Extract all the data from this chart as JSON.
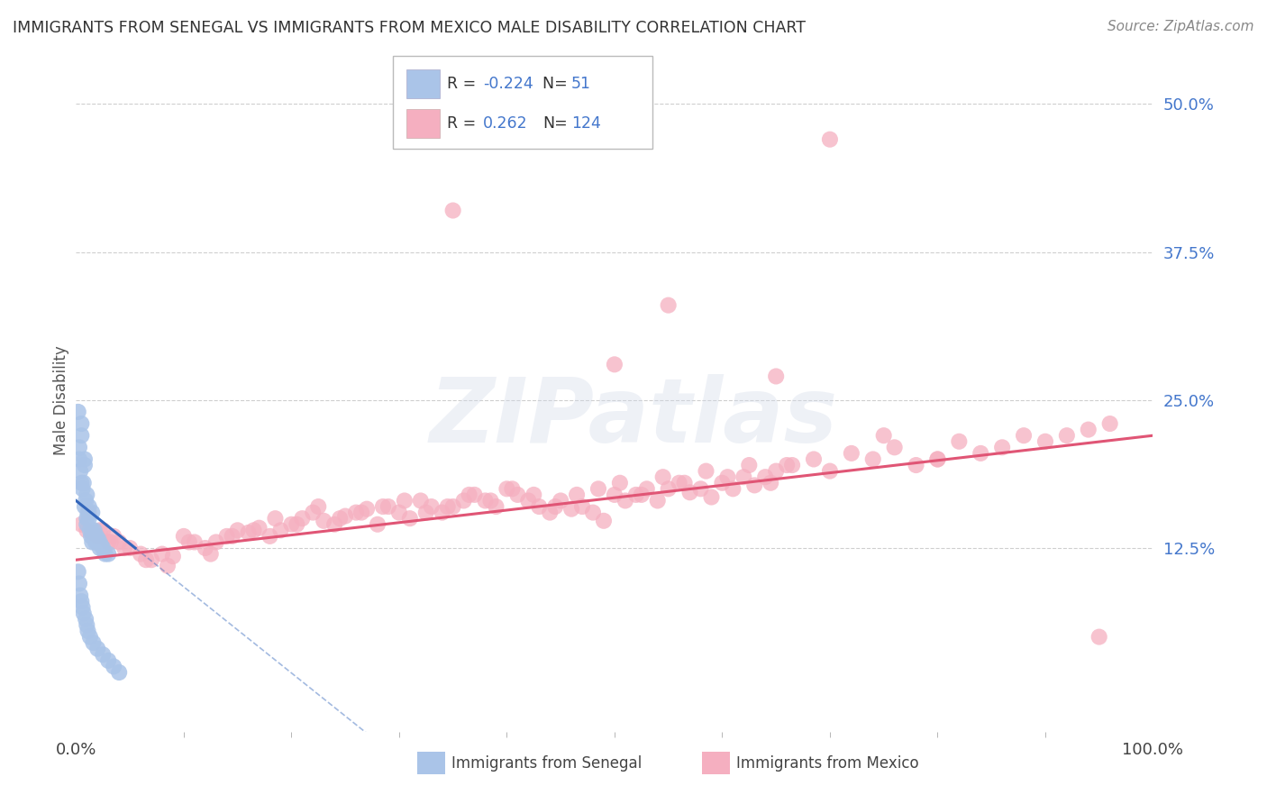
{
  "title": "IMMIGRANTS FROM SENEGAL VS IMMIGRANTS FROM MEXICO MALE DISABILITY CORRELATION CHART",
  "source": "Source: ZipAtlas.com",
  "ylabel": "Male Disability",
  "xlim": [
    0,
    100
  ],
  "ylim": [
    -3,
    53
  ],
  "yticks": [
    0,
    12.5,
    25.0,
    37.5,
    50.0
  ],
  "ytick_labels": [
    "",
    "12.5%",
    "25.0%",
    "37.5%",
    "50.0%"
  ],
  "xtick_labels": [
    "0.0%",
    "100.0%"
  ],
  "color_senegal": "#aac4e8",
  "color_mexico": "#f5afc0",
  "line_color_senegal": "#3366bb",
  "line_color_mexico": "#e05575",
  "background_color": "#ffffff",
  "grid_color": "#bbbbbb",
  "senegal_x": [
    0.3,
    0.5,
    0.5,
    0.8,
    0.8,
    1.0,
    1.0,
    1.2,
    1.5,
    1.5,
    0.2,
    0.3,
    0.4,
    0.5,
    0.6,
    0.7,
    0.8,
    0.9,
    1.0,
    1.1,
    1.2,
    1.3,
    1.4,
    1.5,
    1.6,
    1.7,
    1.8,
    1.9,
    2.0,
    2.1,
    2.2,
    2.3,
    2.5,
    2.7,
    3.0,
    0.2,
    0.3,
    0.4,
    0.5,
    0.6,
    0.7,
    0.9,
    1.0,
    1.1,
    1.3,
    1.6,
    2.0,
    2.5,
    3.0,
    3.5,
    4.0
  ],
  "senegal_y": [
    20.0,
    22.0,
    18.0,
    20.0,
    16.0,
    17.0,
    15.0,
    16.0,
    15.5,
    14.0,
    24.0,
    21.0,
    19.0,
    23.0,
    17.5,
    18.0,
    19.5,
    16.5,
    14.5,
    15.5,
    15.0,
    14.0,
    13.5,
    13.0,
    13.5,
    14.0,
    13.0,
    13.5,
    13.0,
    13.2,
    12.5,
    12.8,
    12.5,
    12.0,
    12.0,
    10.5,
    9.5,
    8.5,
    8.0,
    7.5,
    7.0,
    6.5,
    6.0,
    5.5,
    5.0,
    4.5,
    4.0,
    3.5,
    3.0,
    2.5,
    2.0
  ],
  "mexico_x": [
    0.5,
    1.0,
    1.5,
    2.0,
    2.5,
    3.0,
    3.5,
    4.0,
    5.0,
    6.0,
    7.0,
    8.0,
    9.0,
    10.0,
    11.0,
    12.0,
    13.0,
    14.0,
    15.0,
    16.0,
    17.0,
    18.0,
    19.0,
    20.0,
    21.0,
    22.0,
    23.0,
    24.0,
    25.0,
    26.0,
    27.0,
    28.0,
    29.0,
    30.0,
    31.0,
    32.0,
    33.0,
    34.0,
    35.0,
    36.0,
    37.0,
    38.0,
    39.0,
    40.0,
    41.0,
    42.0,
    43.0,
    44.0,
    45.0,
    46.0,
    47.0,
    48.0,
    49.0,
    50.0,
    51.0,
    52.0,
    53.0,
    54.0,
    55.0,
    56.0,
    57.0,
    58.0,
    59.0,
    60.0,
    61.0,
    62.0,
    63.0,
    64.0,
    65.0,
    66.0,
    1.2,
    2.2,
    3.2,
    4.5,
    6.5,
    8.5,
    10.5,
    12.5,
    14.5,
    16.5,
    18.5,
    20.5,
    22.5,
    24.5,
    26.5,
    28.5,
    30.5,
    32.5,
    34.5,
    36.5,
    38.5,
    40.5,
    42.5,
    44.5,
    46.5,
    48.5,
    50.5,
    52.5,
    54.5,
    56.5,
    58.5,
    60.5,
    62.5,
    64.5,
    66.5,
    68.5,
    70.0,
    72.0,
    74.0,
    76.0,
    78.0,
    80.0,
    82.0,
    84.0,
    86.0,
    88.0,
    90.0,
    92.0,
    94.0,
    96.0,
    35.0,
    50.0,
    55.0,
    65.0,
    70.0,
    75.0,
    80.0,
    95.0
  ],
  "mexico_y": [
    14.5,
    14.0,
    13.8,
    13.5,
    14.0,
    13.0,
    13.5,
    13.0,
    12.5,
    12.0,
    11.5,
    12.0,
    11.8,
    13.5,
    13.0,
    12.5,
    13.0,
    13.5,
    14.0,
    13.8,
    14.2,
    13.5,
    14.0,
    14.5,
    15.0,
    15.5,
    14.8,
    14.5,
    15.2,
    15.5,
    15.8,
    14.5,
    16.0,
    15.5,
    15.0,
    16.5,
    16.0,
    15.5,
    16.0,
    16.5,
    17.0,
    16.5,
    16.0,
    17.5,
    17.0,
    16.5,
    16.0,
    15.5,
    16.5,
    15.8,
    16.0,
    15.5,
    14.8,
    17.0,
    16.5,
    17.0,
    17.5,
    16.5,
    17.5,
    18.0,
    17.2,
    17.5,
    16.8,
    18.0,
    17.5,
    18.5,
    17.8,
    18.5,
    19.0,
    19.5,
    15.5,
    14.0,
    13.0,
    12.5,
    11.5,
    11.0,
    13.0,
    12.0,
    13.5,
    14.0,
    15.0,
    14.5,
    16.0,
    15.0,
    15.5,
    16.0,
    16.5,
    15.5,
    16.0,
    17.0,
    16.5,
    17.5,
    17.0,
    16.0,
    17.0,
    17.5,
    18.0,
    17.0,
    18.5,
    18.0,
    19.0,
    18.5,
    19.5,
    18.0,
    19.5,
    20.0,
    19.0,
    20.5,
    20.0,
    21.0,
    19.5,
    20.0,
    21.5,
    20.5,
    21.0,
    22.0,
    21.5,
    22.0,
    22.5,
    23.0,
    41.0,
    28.0,
    33.0,
    27.0,
    47.0,
    22.0,
    20.0,
    5.0
  ],
  "senegal_trend_start_x": 0.0,
  "senegal_trend_start_y": 16.5,
  "senegal_trend_end_x": 5.5,
  "senegal_trend_end_y": 12.5,
  "mexico_trend_start_x": 0.0,
  "mexico_trend_start_y": 11.5,
  "mexico_trend_end_x": 100.0,
  "mexico_trend_end_y": 22.0
}
